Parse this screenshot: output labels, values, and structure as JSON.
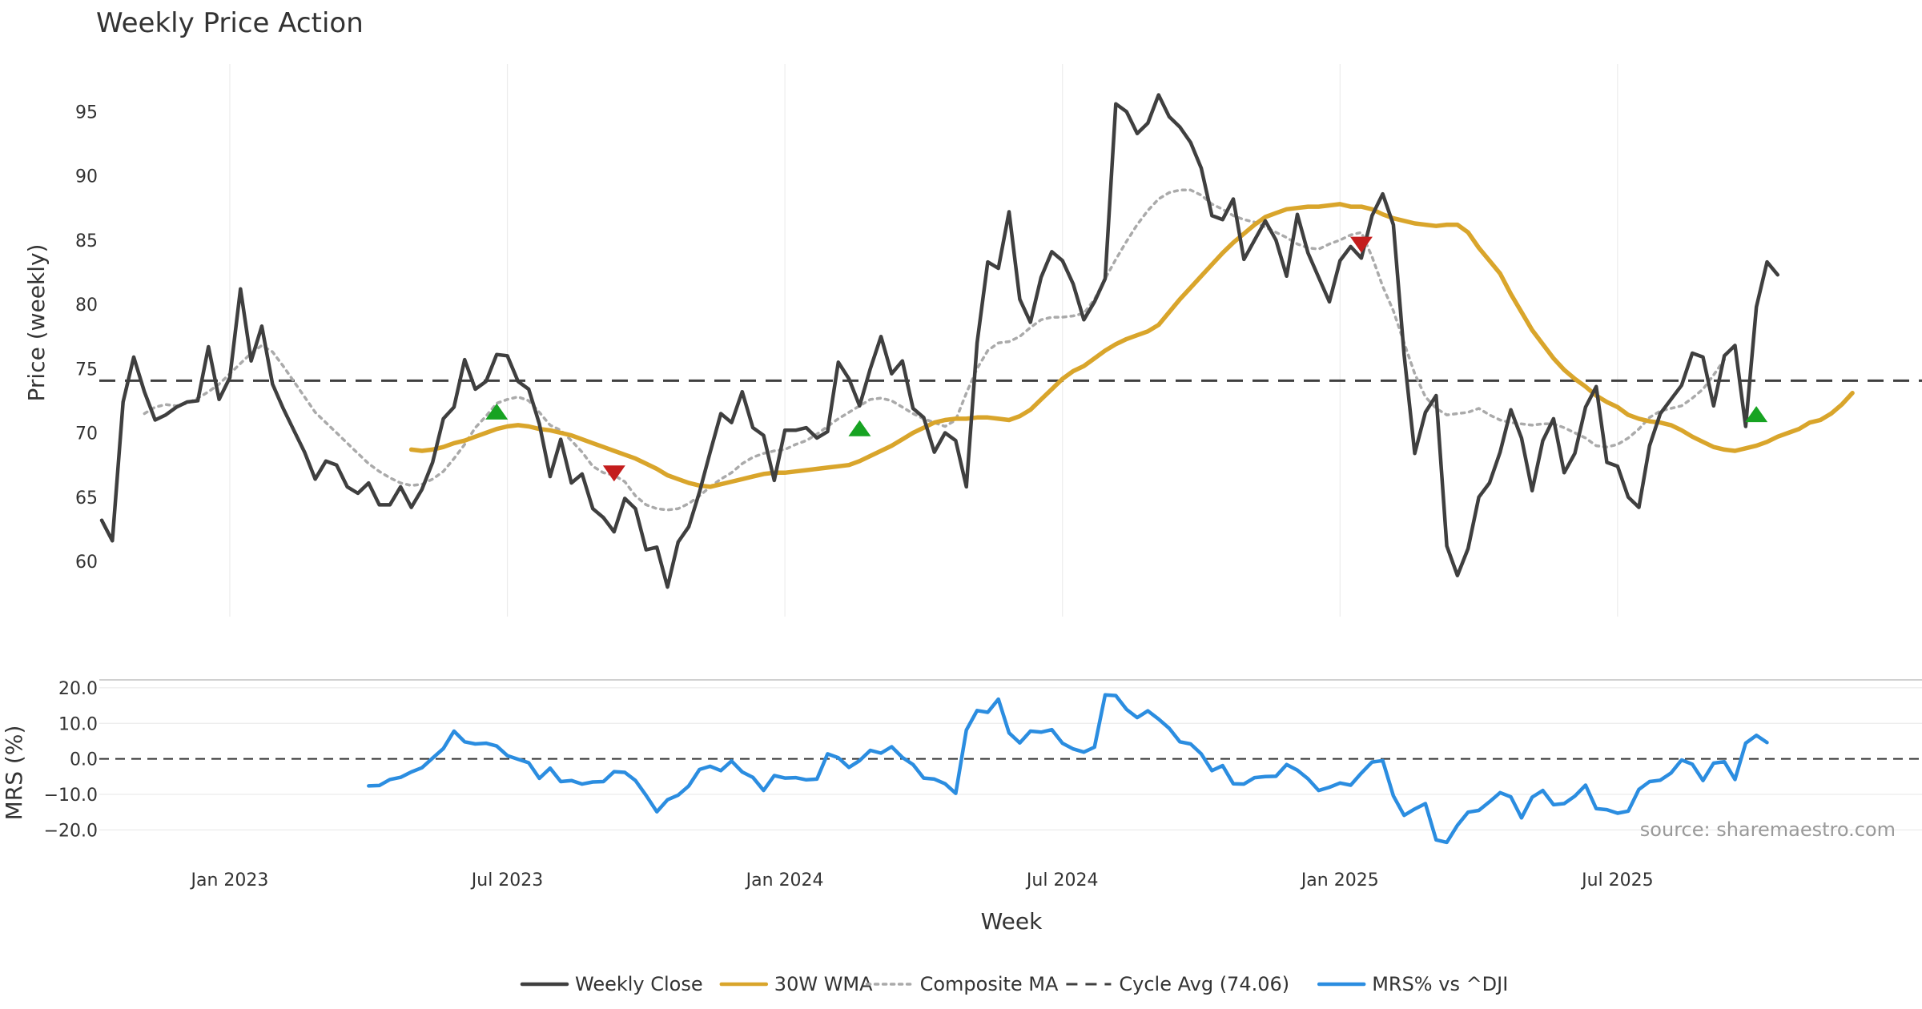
{
  "chart_data": {
    "type": "line",
    "title": "Weekly Price Action",
    "xlabel": "Week",
    "source": "source: sharemaestro.com",
    "x_tick_labels": [
      "Jan 2023",
      "Jul 2023",
      "Jan 2024",
      "Jul 2024",
      "Jan 2025",
      "Jul 2025"
    ],
    "price_panel": {
      "ylabel": "Price (weekly)",
      "ylim": [
        55.7,
        98.7
      ],
      "yticks": [
        60,
        65,
        70,
        75,
        80,
        85,
        90,
        95
      ],
      "series": [
        {
          "name": "Weekly Close",
          "color": "#3f3f3f",
          "style": "solid",
          "start_week": 0,
          "values": [
            63.2,
            61.6,
            72.4,
            75.9,
            73.2,
            71.0,
            71.4,
            72.0,
            72.4,
            72.5,
            76.7,
            72.6,
            74.3,
            81.2,
            75.6,
            78.3,
            73.8,
            71.9,
            70.2,
            68.5,
            66.4,
            67.8,
            67.5,
            65.8,
            65.3,
            66.1,
            64.4,
            64.4,
            65.8,
            64.2,
            65.6,
            67.7,
            71.1,
            72.0,
            75.7,
            73.4,
            74.0,
            76.1,
            76.0,
            74.0,
            73.4,
            70.7,
            66.6,
            69.5,
            66.1,
            66.8,
            64.1,
            63.4,
            62.3,
            64.9,
            64.1,
            60.9,
            61.1,
            58.0,
            61.5,
            62.7,
            65.4,
            68.5,
            71.5,
            70.8,
            73.2,
            70.4,
            69.8,
            66.3,
            70.2,
            70.2,
            70.4,
            69.6,
            70.1,
            75.5,
            74.2,
            72.1,
            75.0,
            77.5,
            74.6,
            75.6,
            71.9,
            71.2,
            68.5,
            70.0,
            69.4,
            65.8,
            77.0,
            83.3,
            82.8,
            87.2,
            80.4,
            78.6,
            82.1,
            84.1,
            83.4,
            81.6,
            78.8,
            80.2,
            82.0,
            95.6,
            95.0,
            93.3,
            94.1,
            96.3,
            94.6,
            93.8,
            92.6,
            90.6,
            86.9,
            86.6,
            88.2,
            83.5,
            85.0,
            86.5,
            85.0,
            82.2,
            87.0,
            84.0,
            82.1,
            80.2,
            83.4,
            84.5,
            83.6,
            86.9,
            88.6,
            86.2,
            76.1,
            68.4,
            71.6,
            72.9,
            61.2,
            58.9,
            61.0,
            65.0,
            66.1,
            68.5,
            71.8,
            69.6,
            65.5,
            69.4,
            71.1,
            66.9,
            68.4,
            72.0,
            73.6,
            67.7,
            67.4,
            65.0,
            64.2,
            69.0,
            71.5,
            72.6,
            73.7,
            76.2,
            75.9,
            72.1,
            76.0,
            76.8,
            70.5,
            79.8,
            83.3,
            82.3
          ]
        },
        {
          "name": "30W WMA",
          "color": "#d9a52b",
          "style": "solid",
          "start_week": 29,
          "values": [
            68.7,
            68.6,
            68.7,
            68.9,
            69.2,
            69.4,
            69.7,
            70.0,
            70.3,
            70.5,
            70.6,
            70.5,
            70.3,
            70.2,
            70.0,
            69.8,
            69.5,
            69.2,
            68.9,
            68.6,
            68.3,
            68.0,
            67.6,
            67.2,
            66.7,
            66.4,
            66.1,
            65.9,
            65.8,
            66.0,
            66.2,
            66.4,
            66.6,
            66.8,
            66.9,
            66.9,
            67.0,
            67.1,
            67.2,
            67.3,
            67.4,
            67.5,
            67.8,
            68.2,
            68.6,
            69.0,
            69.5,
            70.0,
            70.4,
            70.8,
            71.0,
            71.1,
            71.1,
            71.2,
            71.2,
            71.1,
            71.0,
            71.3,
            71.8,
            72.6,
            73.4,
            74.2,
            74.8,
            75.2,
            75.8,
            76.4,
            76.9,
            77.3,
            77.6,
            77.9,
            78.4,
            79.4,
            80.4,
            81.3,
            82.2,
            83.1,
            84.0,
            84.8,
            85.5,
            86.2,
            86.8,
            87.1,
            87.4,
            87.5,
            87.6,
            87.6,
            87.7,
            87.8,
            87.6,
            87.6,
            87.4,
            87.0,
            86.7,
            86.5,
            86.3,
            86.2,
            86.1,
            86.2,
            86.2,
            85.6,
            84.4,
            83.4,
            82.4,
            80.8,
            79.4,
            78.0,
            76.9,
            75.8,
            74.9,
            74.2,
            73.6,
            72.9,
            72.4,
            72.0,
            71.4,
            71.1,
            70.9,
            70.8,
            70.6,
            70.2,
            69.7,
            69.3,
            68.9,
            68.7,
            68.6,
            68.8,
            69.0,
            69.3,
            69.7,
            70.0,
            70.3,
            70.8,
            71.0,
            71.5,
            72.2,
            73.1
          ]
        },
        {
          "name": "Composite MA",
          "color": "#aaaaaa",
          "style": "dotted",
          "start_week": 4,
          "values": [
            71.5,
            72.0,
            72.2,
            72.1,
            72.3,
            72.7,
            73.2,
            73.8,
            74.6,
            75.4,
            76.2,
            76.8,
            76.3,
            75.2,
            74.0,
            72.8,
            71.6,
            70.8,
            70.0,
            69.2,
            68.4,
            67.6,
            67.0,
            66.5,
            66.1,
            65.9,
            66.0,
            66.4,
            67.0,
            68.0,
            69.1,
            70.4,
            71.3,
            72.3,
            72.6,
            72.8,
            72.5,
            71.6,
            70.6,
            70.2,
            69.4,
            68.5,
            67.4,
            66.9,
            66.7,
            66.2,
            65.1,
            64.4,
            64.1,
            64.0,
            64.1,
            64.5,
            65.1,
            65.8,
            66.4,
            66.9,
            67.6,
            68.1,
            68.4,
            68.6,
            68.7,
            69.1,
            69.4,
            69.9,
            70.5,
            71.1,
            71.6,
            72.1,
            72.6,
            72.7,
            72.5,
            72.0,
            71.5,
            71.1,
            70.8,
            70.5,
            71.0,
            73.1,
            75.0,
            76.4,
            77.0,
            77.1,
            77.5,
            78.2,
            78.8,
            79.0,
            79.0,
            79.1,
            79.3,
            80.4,
            82.0,
            83.5,
            84.9,
            86.2,
            87.3,
            88.2,
            88.7,
            88.9,
            88.9,
            88.5,
            87.8,
            87.4,
            86.9,
            86.6,
            86.4,
            86.0,
            85.6,
            85.2,
            84.7,
            84.4,
            84.3,
            84.7,
            85.0,
            85.4,
            85.6,
            83.7,
            81.4,
            79.5,
            77.0,
            74.6,
            72.8,
            71.9,
            71.4,
            71.5,
            71.6,
            71.9,
            71.4,
            71.0,
            70.8,
            70.7,
            70.6,
            70.7,
            70.7,
            70.4,
            70.0,
            69.6,
            69.0,
            68.9,
            69.1,
            69.6,
            70.3,
            71.2,
            71.7,
            71.9,
            72.1,
            72.7,
            73.4,
            74.5,
            75.7
          ]
        },
        {
          "name": "Cycle Avg (74.06)",
          "color": "#3f3f3f",
          "style": "dashed",
          "constant": 74.06
        }
      ],
      "markers": [
        {
          "type": "buy",
          "week": 37,
          "value": 71.6,
          "color": "#17a322"
        },
        {
          "type": "sell",
          "week": 48,
          "value": 66.9,
          "color": "#c41d1d"
        },
        {
          "type": "buy",
          "week": 71,
          "value": 70.3,
          "color": "#17a322"
        },
        {
          "type": "sell",
          "week": 118,
          "value": 84.7,
          "color": "#c41d1d"
        },
        {
          "type": "buy",
          "week": 155,
          "value": 71.4,
          "color": "#17a322"
        }
      ]
    },
    "mrs_panel": {
      "ylabel": "MRS (%)",
      "ylim": [
        -26,
        22
      ],
      "yticks": [
        20,
        10,
        0,
        -10,
        -20
      ],
      "ytick_labels": [
        "20.0",
        "10.0",
        "0.0",
        "−10.0",
        "−20.0"
      ],
      "zero_line": 0,
      "series": [
        {
          "name": "MRS% vs ^DJI",
          "color": "#2b8de0",
          "style": "solid",
          "start_week": 25,
          "values": [
            -7.6,
            -7.5,
            -5.8,
            -5.2,
            -3.7,
            -2.5,
            0.2,
            2.9,
            7.8,
            4.8,
            4.2,
            4.4,
            3.6,
            0.9,
            -0.1,
            -1.1,
            -5.5,
            -2.6,
            -6.4,
            -6.1,
            -7.1,
            -6.5,
            -6.4,
            -3.6,
            -3.8,
            -6.1,
            -10.3,
            -14.9,
            -11.5,
            -10.2,
            -7.6,
            -3.0,
            -2.1,
            -3.3,
            -0.6,
            -3.7,
            -5.2,
            -8.9,
            -4.7,
            -5.4,
            -5.3,
            -5.9,
            -5.7,
            1.4,
            0.3,
            -2.4,
            -0.5,
            2.4,
            1.6,
            3.4,
            0.4,
            -1.6,
            -5.4,
            -5.7,
            -7.0,
            -9.7,
            8.1,
            13.6,
            13.1,
            16.8,
            7.3,
            4.5,
            7.8,
            7.5,
            8.2,
            4.4,
            2.8,
            1.9,
            3.3,
            18.0,
            17.8,
            13.9,
            11.6,
            13.5,
            11.2,
            8.6,
            4.8,
            4.2,
            1.4,
            -3.3,
            -1.9,
            -7.0,
            -7.1,
            -5.3,
            -5.0,
            -4.9,
            -1.6,
            -3.2,
            -5.6,
            -8.9,
            -8.0,
            -6.8,
            -7.4,
            -4.0,
            -0.9,
            -0.5,
            -10.4,
            -15.9,
            -14.1,
            -12.6,
            -22.8,
            -23.5,
            -18.7,
            -15.0,
            -14.5,
            -12.1,
            -9.5,
            -10.7,
            -16.6,
            -10.8,
            -8.9,
            -12.9,
            -12.6,
            -10.5,
            -7.4,
            -14.0,
            -14.3,
            -15.3,
            -14.7,
            -8.6,
            -6.4,
            -6.0,
            -4.0,
            -0.3,
            -1.5,
            -6.1,
            -1.2,
            -0.8,
            -5.8,
            4.4,
            6.6,
            4.6
          ]
        }
      ]
    },
    "legend": [
      {
        "label": "Weekly Close",
        "color": "#3f3f3f",
        "style": "solid"
      },
      {
        "label": "30W WMA",
        "color": "#d9a52b",
        "style": "solid"
      },
      {
        "label": "Composite MA",
        "color": "#aaaaaa",
        "style": "dotted"
      },
      {
        "label": "Cycle Avg (74.06)",
        "color": "#3f3f3f",
        "style": "dashed"
      },
      {
        "label": "MRS% vs ^DJI",
        "color": "#2b8de0",
        "style": "solid"
      }
    ]
  }
}
